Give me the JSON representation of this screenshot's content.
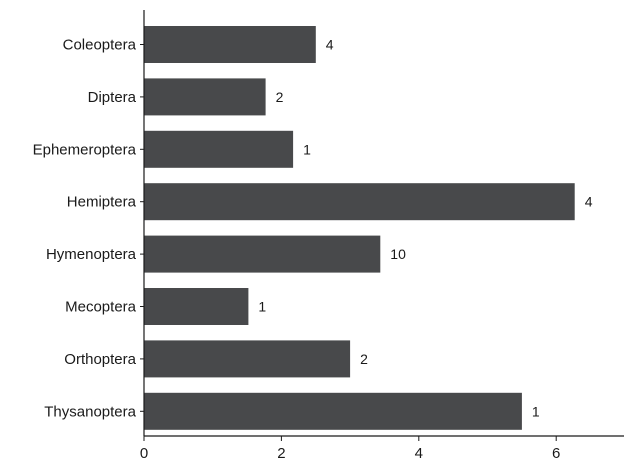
{
  "chart_data": {
    "type": "bar",
    "orientation": "horizontal",
    "categories": [
      "Coleoptera",
      "Diptera",
      "Ephemeroptera",
      "Hemiptera",
      "Hymenoptera",
      "Mecoptera",
      "Orthoptera",
      "Thysanoptera"
    ],
    "values": [
      2.5,
      1.77,
      2.17,
      6.27,
      3.44,
      1.52,
      3.0,
      5.5
    ],
    "data_labels": [
      "4",
      "2",
      "1",
      "4",
      "10",
      "1",
      "2",
      "1"
    ],
    "x_ticks": [
      "0",
      "2",
      "4",
      "6"
    ],
    "xlim": [
      0,
      7
    ],
    "title": "",
    "xlabel": "",
    "ylabel": "",
    "grid": false,
    "legend": "none",
    "colors": {
      "bar": "#48494b",
      "axis": "#1a1a1a"
    }
  }
}
